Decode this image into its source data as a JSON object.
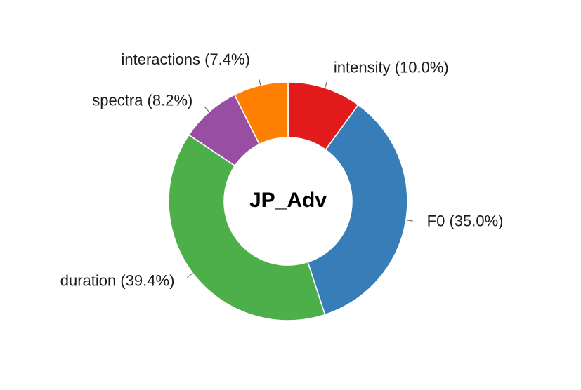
{
  "chart_data": {
    "type": "pie",
    "title": "JP_Adv",
    "categories": [
      "intensity",
      "F0",
      "duration",
      "spectra",
      "interactions"
    ],
    "values": [
      10.0,
      35.0,
      39.4,
      8.2,
      7.4
    ],
    "labels": [
      "intensity (10.0%)",
      "F0 (35.0%)",
      "duration (39.4%)",
      "spectra (8.2%)",
      "interactions (7.4%)"
    ],
    "colors": [
      "#e31a1c",
      "#377eb8",
      "#4daf4a",
      "#984ea3",
      "#ff7f00"
    ],
    "start": "top",
    "direction": "clockwise",
    "donut": true
  }
}
